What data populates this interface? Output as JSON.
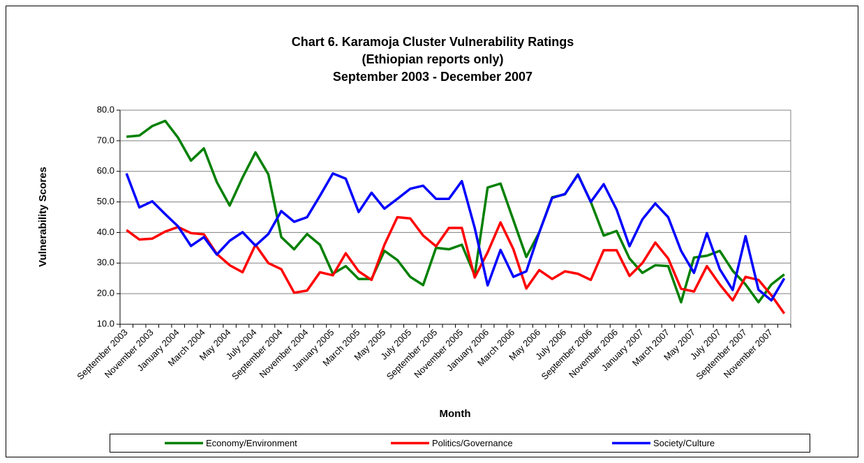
{
  "chart_data": {
    "type": "line",
    "title": [
      "Chart 6. Karamoja Cluster Vulnerability Ratings",
      "(Ethiopian reports only)",
      "September 2003 - December 2007"
    ],
    "x_label": "Month",
    "y_label": "Vulnerability Scores",
    "categories": [
      "September 2003",
      null,
      "November 2003",
      null,
      "January 2004",
      null,
      "March 2004",
      null,
      "May 2004",
      null,
      "July 2004",
      null,
      "September 2004",
      null,
      "November 2004",
      null,
      "January 2005",
      null,
      "March 2005",
      null,
      "May 2005",
      null,
      "July 2005",
      null,
      "September 2005",
      null,
      "November 2005",
      null,
      "January 2006",
      null,
      "March 2006",
      null,
      "May 2006",
      null,
      "July 2006",
      null,
      "September 2006",
      null,
      "November 2006",
      null,
      "January 2007",
      null,
      "March 2007",
      null,
      "May 2007",
      null,
      "July 2007",
      null,
      "September 2007",
      null,
      "November 2007",
      null
    ],
    "ylim": [
      10,
      80
    ],
    "yticks": [
      {
        "value": 10,
        "label": "10.0"
      },
      {
        "value": 20,
        "label": "20.0"
      },
      {
        "value": 30,
        "label": "30.0"
      },
      {
        "value": 40,
        "label": "40.0"
      },
      {
        "value": 50,
        "label": "50.0"
      },
      {
        "value": 60,
        "label": "60.0"
      },
      {
        "value": 70,
        "label": "70.0"
      },
      {
        "value": 80,
        "label": "80.0"
      }
    ],
    "grid": true,
    "legend": "bottom",
    "series": [
      {
        "name": "Economy/Environment",
        "color": "#008000",
        "values": [
          71.3,
          71.7,
          74.8,
          76.5,
          71,
          63.5,
          67.5,
          56.5,
          48.8,
          58,
          66.2,
          59,
          38.5,
          34.5,
          39.5,
          36,
          26.5,
          29,
          24.8,
          24.8,
          34,
          31,
          25.5,
          22.8,
          35,
          34.5,
          36,
          26,
          54.7,
          56,
          44,
          32,
          40,
          51.5,
          52.5,
          59,
          50,
          39,
          40.5,
          31.5,
          26.8,
          29.3,
          29,
          17.2,
          31.8,
          32.4,
          34,
          27.5,
          23,
          17.2,
          23,
          26.3
        ]
      },
      {
        "name": "Politics/Governance",
        "color": "#ff0000",
        "values": [
          40.8,
          37.7,
          38,
          40.3,
          41.8,
          39.8,
          39.4,
          33,
          29.3,
          27,
          36,
          30,
          28,
          20.3,
          21,
          27,
          26,
          33.2,
          27.3,
          24.5,
          36,
          45,
          44.6,
          39,
          35.5,
          41.5,
          41.5,
          25.3,
          33.5,
          43.3,
          34.5,
          21.7,
          27.7,
          24.8,
          27.3,
          26.5,
          24.5,
          34.2,
          34.2,
          25.8,
          30,
          36.7,
          31.5,
          21.6,
          20.7,
          29,
          23,
          17.8,
          25.5,
          24.5,
          19.5,
          13.5
        ]
      },
      {
        "name": "Society/Culture",
        "color": "#0000ff",
        "values": [
          59.3,
          48.2,
          50.2,
          46,
          42,
          35.6,
          38.5,
          32.8,
          37.3,
          40.1,
          35.7,
          39.5,
          47,
          43.5,
          45,
          52,
          59.3,
          57.6,
          46.7,
          53,
          47.8,
          51,
          54.3,
          55.3,
          51,
          51,
          56.8,
          41.5,
          22.7,
          34.3,
          25.5,
          27.3,
          40,
          51.3,
          52.6,
          58.9,
          50,
          55.8,
          47.5,
          35.5,
          44.3,
          49.5,
          45,
          34,
          26.8,
          39.8,
          28,
          21.2,
          38.8,
          21.3,
          17.8,
          25
        ]
      }
    ]
  }
}
